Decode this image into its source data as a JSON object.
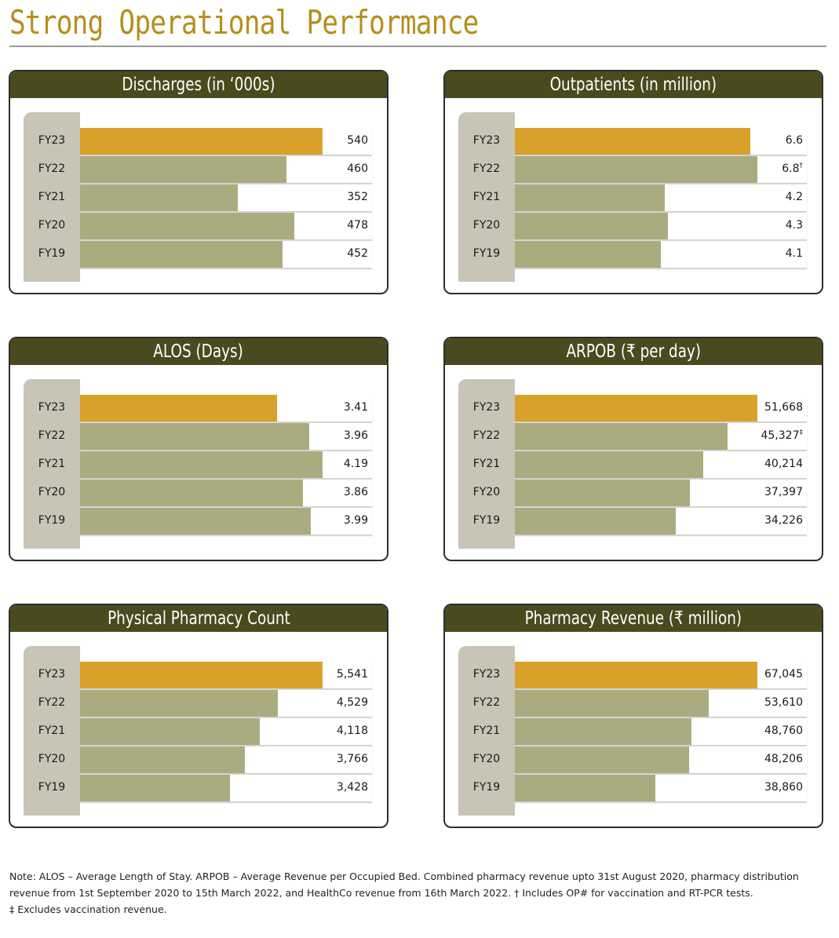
{
  "page_title": "Strong Operational Performance",
  "chart_data": [
    {
      "type": "bar",
      "orientation": "horizontal",
      "title": "Discharges (in ‘000s)",
      "categories": [
        "FY23",
        "FY22",
        "FY21",
        "FY20",
        "FY19"
      ],
      "values": [
        540,
        460,
        352,
        478,
        452
      ],
      "labels": [
        "540",
        "460",
        "352",
        "478",
        "452"
      ],
      "marks": [
        "",
        "",
        "",
        "",
        ""
      ],
      "highlight": "FY23"
    },
    {
      "type": "bar",
      "orientation": "horizontal",
      "title": "Outpatients (in million)",
      "categories": [
        "FY23",
        "FY22",
        "FY21",
        "FY20",
        "FY19"
      ],
      "values": [
        6.6,
        6.8,
        4.2,
        4.3,
        4.1
      ],
      "labels": [
        "6.6",
        "6.8",
        "4.2",
        "4.3",
        "4.1"
      ],
      "marks": [
        "",
        "†",
        "",
        "",
        ""
      ],
      "highlight": "FY23"
    },
    {
      "type": "bar",
      "orientation": "horizontal",
      "title": "ALOS (Days)",
      "categories": [
        "FY23",
        "FY22",
        "FY21",
        "FY20",
        "FY19"
      ],
      "values": [
        3.41,
        3.96,
        4.19,
        3.86,
        3.99
      ],
      "labels": [
        "3.41",
        "3.96",
        "4.19",
        "3.86",
        "3.99"
      ],
      "marks": [
        "",
        "",
        "",
        "",
        ""
      ],
      "highlight": "FY23"
    },
    {
      "type": "bar",
      "orientation": "horizontal",
      "title": "ARPOB (₹ per day)",
      "categories": [
        "FY23",
        "FY22",
        "FY21",
        "FY20",
        "FY19"
      ],
      "values": [
        51668,
        45327,
        40214,
        37397,
        34226
      ],
      "labels": [
        "51,668",
        "45,327",
        "40,214",
        "37,397",
        "34,226"
      ],
      "marks": [
        "",
        "‡",
        "",
        "",
        ""
      ],
      "highlight": "FY23"
    },
    {
      "type": "bar",
      "orientation": "horizontal",
      "title": "Physical Pharmacy Count",
      "categories": [
        "FY23",
        "FY22",
        "FY21",
        "FY20",
        "FY19"
      ],
      "values": [
        5541,
        4529,
        4118,
        3766,
        3428
      ],
      "labels": [
        "5,541",
        "4,529",
        "4,118",
        "3,766",
        "3,428"
      ],
      "marks": [
        "",
        "",
        "",
        "",
        ""
      ],
      "highlight": "FY23"
    },
    {
      "type": "bar",
      "orientation": "horizontal",
      "title": "Pharmacy Revenue (₹ million)",
      "categories": [
        "FY23",
        "FY22",
        "FY21",
        "FY20",
        "FY19"
      ],
      "values": [
        67045,
        53610,
        48760,
        48206,
        38860
      ],
      "labels": [
        "67,045",
        "53,610",
        "48,760",
        "48,206",
        "38,860"
      ],
      "marks": [
        "",
        "",
        "",
        "",
        ""
      ],
      "highlight": "FY23"
    }
  ],
  "colors": {
    "header": "#4a4a1e",
    "current_bar": "#d9a12a",
    "prior_bar": "#aaac80",
    "year_tab": "#c8c4b6",
    "title": "#b58f1c"
  },
  "note": {
    "line1": "Note: ALOS – Average Length of Stay.    ARPOB – Average Revenue per Occupied Bed.  Combined pharmacy revenue upto 31st August 2020, pharmacy distribution",
    "line2": "revenue from 1st September 2020 to 15th March 2022, and HealthCo revenue from 16th March 2022.  † Includes OP# for vaccination and RT-PCR tests.",
    "line3": "‡ Excludes vaccination revenue."
  }
}
